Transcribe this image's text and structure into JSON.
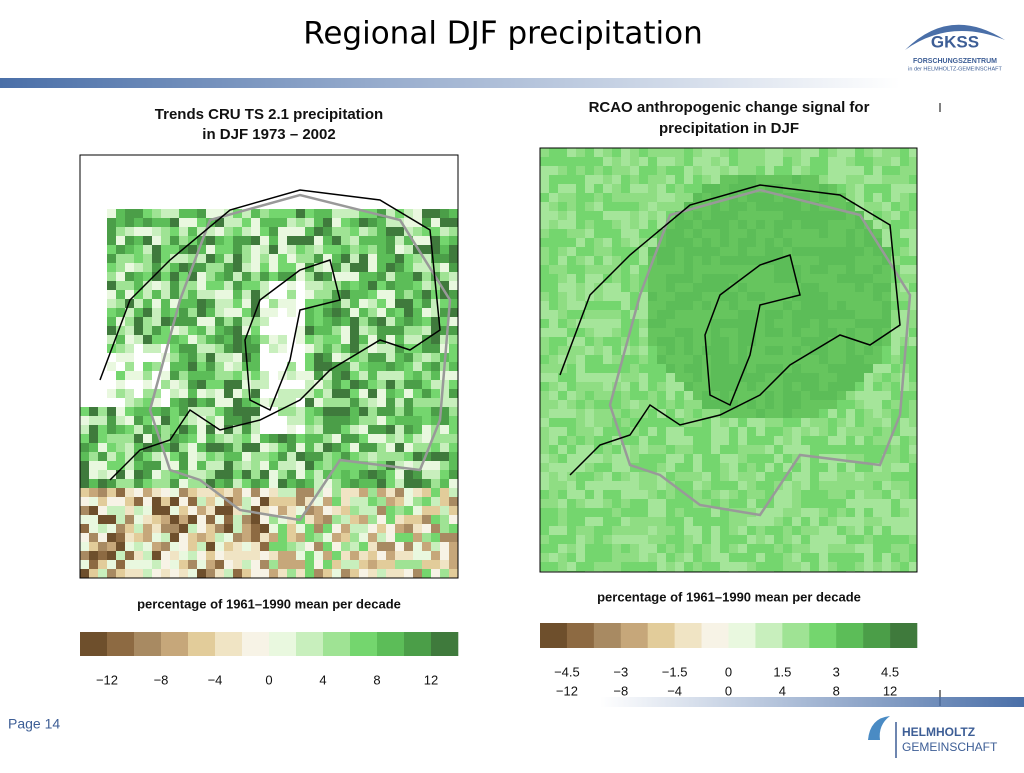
{
  "header": {
    "title": "Regional DJF precipitation",
    "logo": {
      "name": "GKSS",
      "line1": "FORSCHUNGSZENTRUM",
      "line2": "in der HELMHOLTZ-GEMEINSCHAFT"
    }
  },
  "panels": [
    {
      "title_lines": [
        "Trends CRU TS 2.1 precipitation",
        "in DJF 1973 – 2002"
      ],
      "caption": "percentage of 1961–1990 mean per decade",
      "colorbar_labels": [
        "−12",
        "−8",
        "−4",
        "0",
        "4",
        "8",
        "12"
      ]
    },
    {
      "title_lines": [
        "RCAO anthropogenic change signal for",
        "precipitation in DJF"
      ],
      "caption": "percentage of 1961–1990 mean per decade",
      "colorbar_labels": [
        "−4.5",
        "−3",
        "−1.5",
        "0",
        "1.5",
        "3",
        "4.5"
      ],
      "hidden_labels": [
        "−12",
        "−8",
        "−4",
        "0",
        "4",
        "8",
        "12"
      ]
    }
  ],
  "footer": {
    "page": "Page 14",
    "logo_line1": "HELMHOLTZ",
    "logo_line2": "GEMEINSCHAFT"
  }
}
